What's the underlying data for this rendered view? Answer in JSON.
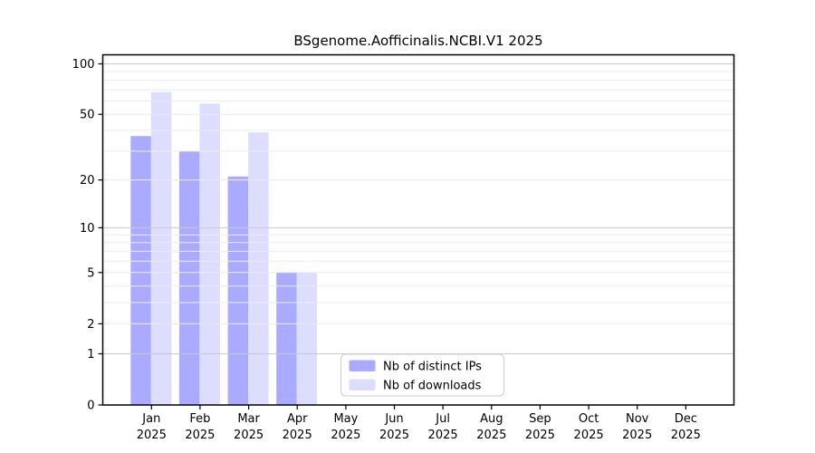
{
  "chart_data": {
    "type": "bar",
    "title": "BSgenome.Aofficinalis.NCBI.V1 2025",
    "categories": [
      "Jan",
      "Feb",
      "Mar",
      "Apr",
      "May",
      "Jun",
      "Jul",
      "Aug",
      "Sep",
      "Oct",
      "Nov",
      "Dec"
    ],
    "x_tick_second_line": "2025",
    "series": [
      {
        "name": "Nb of distinct IPs",
        "color": "#aaaaff",
        "values": [
          37,
          30,
          21,
          5,
          0,
          0,
          0,
          0,
          0,
          0,
          0,
          0
        ]
      },
      {
        "name": "Nb of downloads",
        "color": "#ddddff",
        "values": [
          68,
          58,
          39,
          5,
          0,
          0,
          0,
          0,
          0,
          0,
          0,
          0
        ]
      }
    ],
    "xlabel": "",
    "ylabel": "",
    "yscale": "log1p",
    "ylim": [
      0,
      100
    ],
    "yticks": [
      0,
      1,
      2,
      5,
      10,
      20,
      50,
      100
    ],
    "grid": {
      "minor_lines": [
        2,
        3,
        4,
        5,
        6,
        7,
        8,
        9,
        20,
        30,
        40,
        50,
        60,
        70,
        80,
        90
      ],
      "major_lines": [
        1,
        10,
        100
      ],
      "minor_color": "#ececf0",
      "major_color": "#c9c9cd"
    },
    "legend": {
      "position": "bottom-center-inside",
      "border_color": "#cccccc",
      "background": "#ffffff"
    },
    "axis_color": "#000000",
    "text_color": "#000000",
    "background": "#ffffff"
  }
}
